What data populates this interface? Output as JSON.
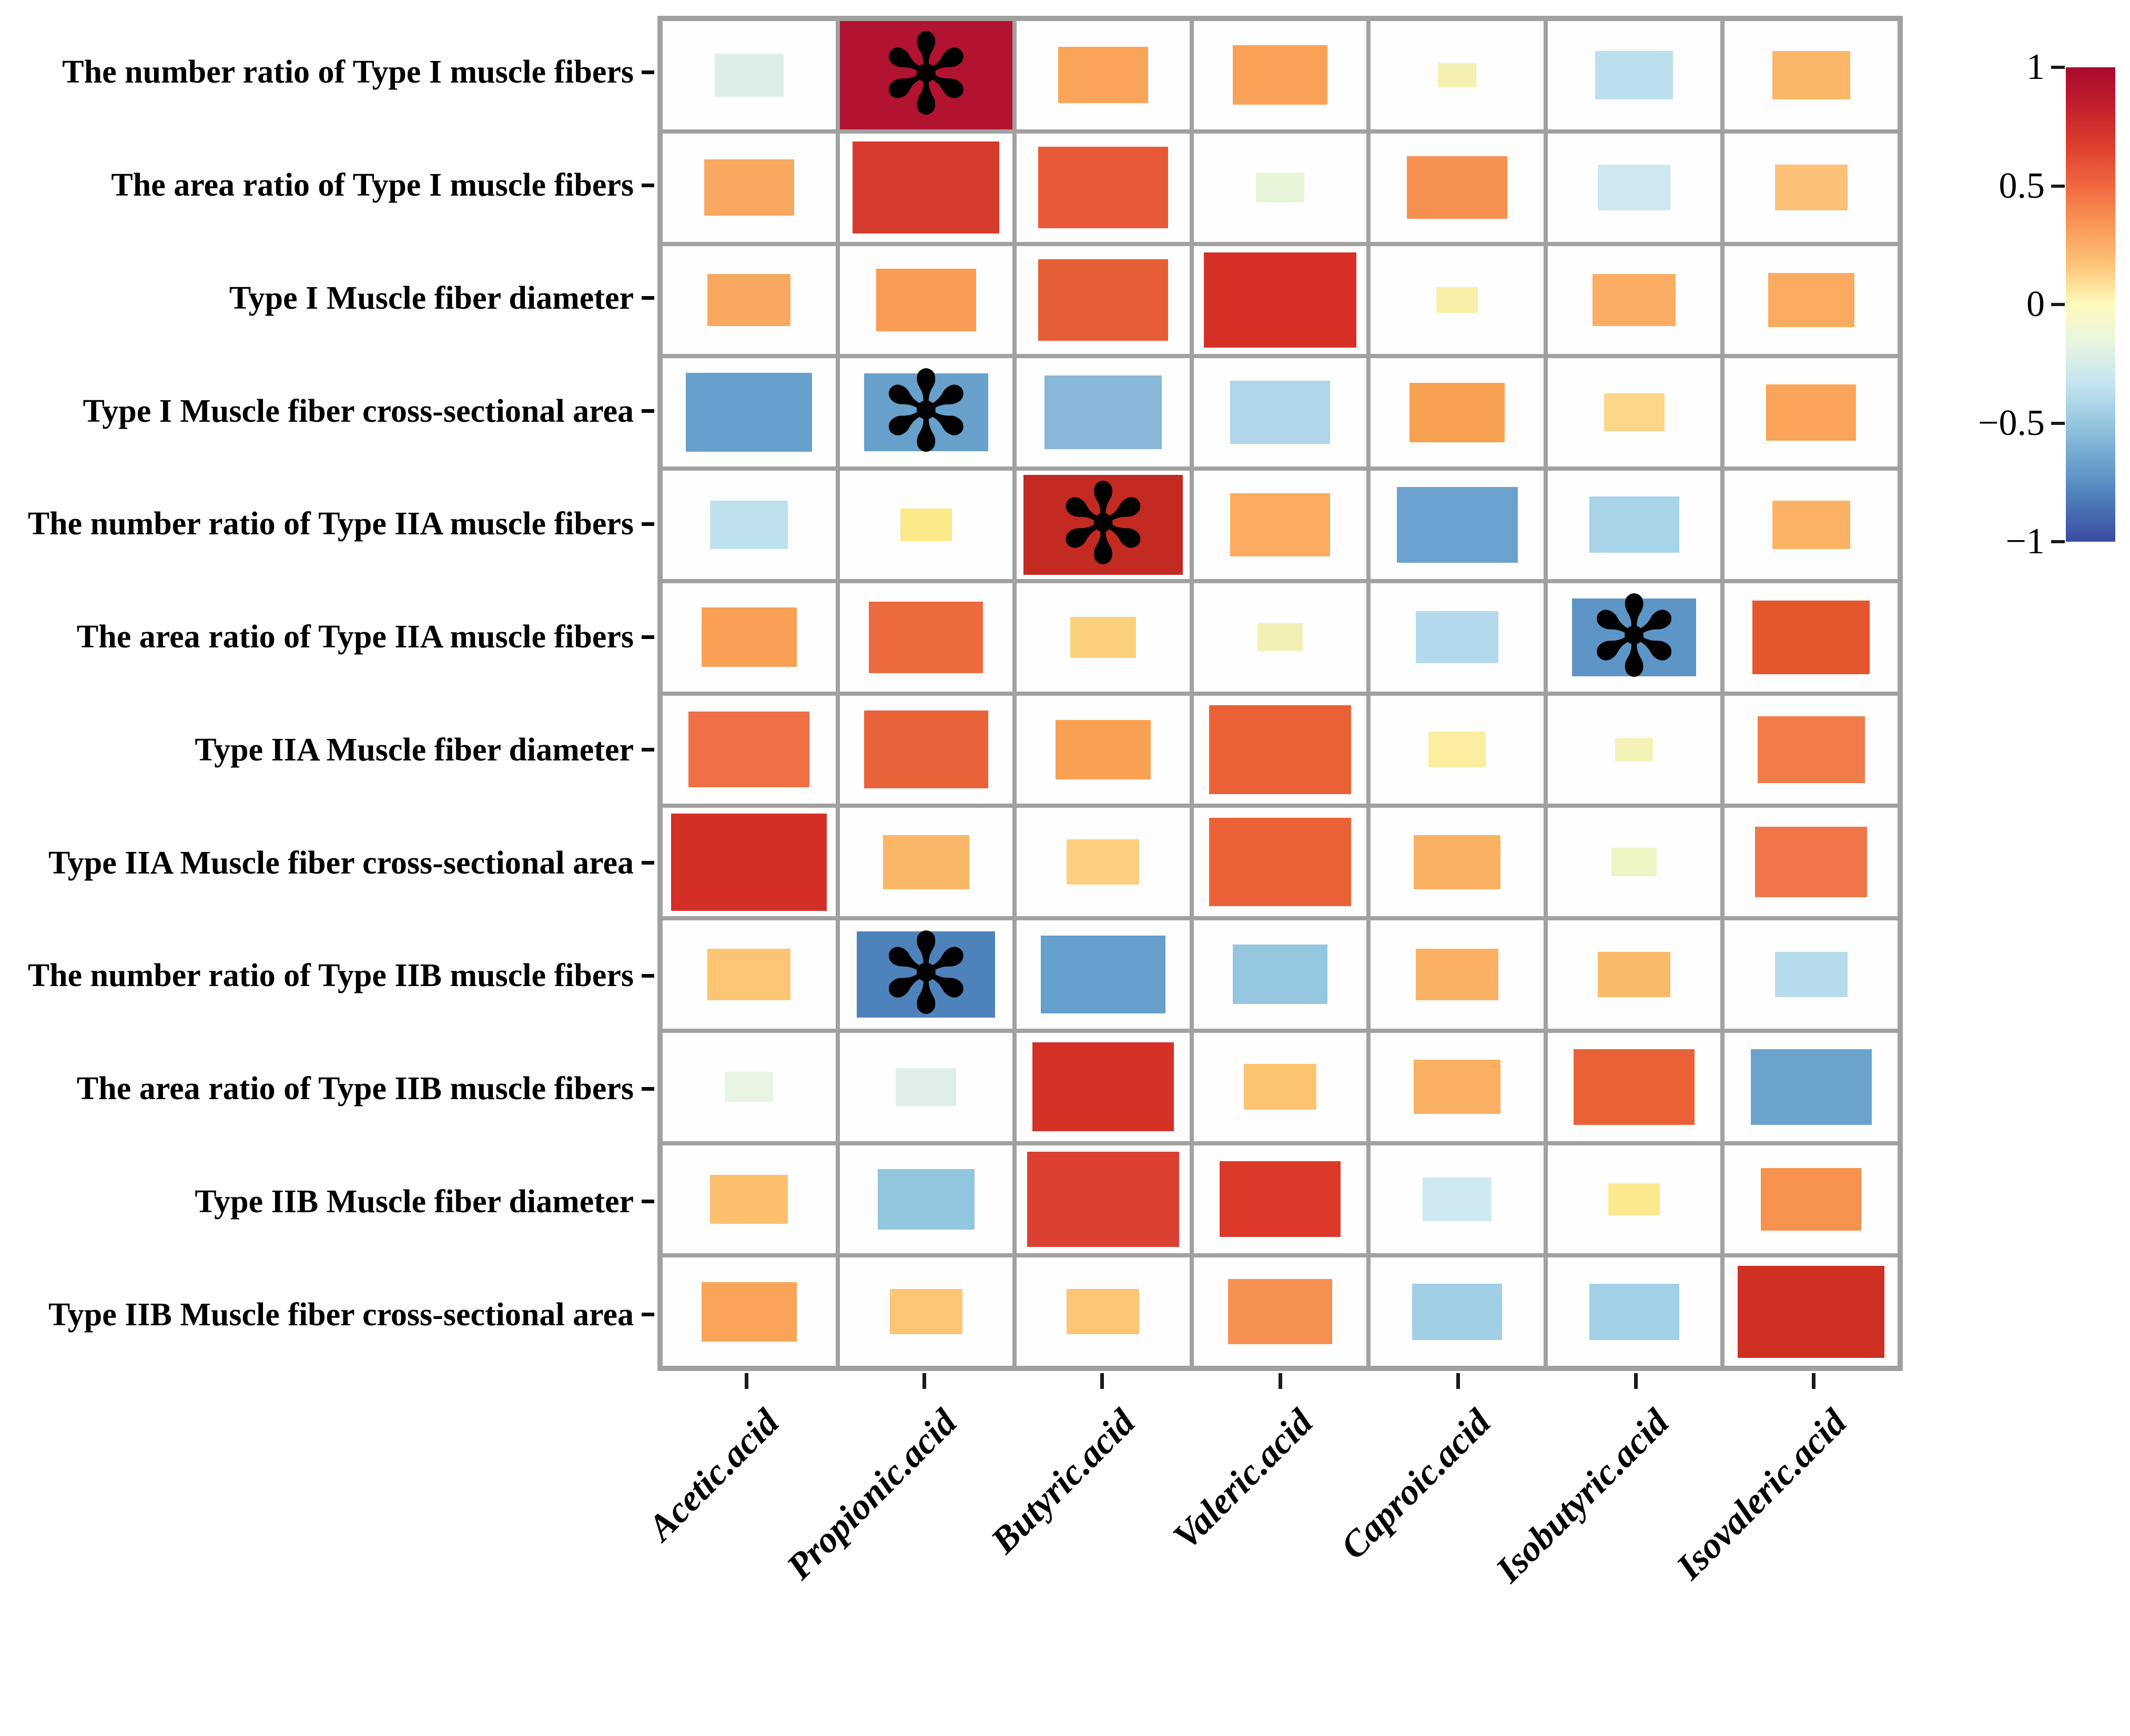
{
  "chart_data": {
    "type": "heatmap",
    "title": "",
    "description": "Correlation matrix between muscle fiber traits and short-chain fatty acids; colored rectangle size and color encode correlation coefficient r, asterisk marks significant correlations",
    "x_categories": [
      "Acetic.acid",
      "Propionic.acid",
      "Butyric.acid",
      "Valeric.acid",
      "Caproic.acid",
      "Isobutyric.acid",
      "Isovaleric.acid"
    ],
    "y_categories": [
      "The number ratio of Type I muscle fibers",
      "The area ratio of Type I muscle fibers",
      "Type I Muscle fiber diameter",
      "Type I Muscle fiber cross-sectional area",
      "The number ratio of Type IIA muscle fibers",
      "The area ratio of Type IIA muscle fibers",
      "Type IIA Muscle fiber diameter",
      "Type IIA Muscle fiber cross-sectional area",
      "The number ratio of Type IIB muscle fibers",
      "The area ratio of Type IIB muscle fibers",
      "Type IIB Muscle fiber diameter",
      "Type IIB Muscle fiber cross-sectional area"
    ],
    "legend_position": "right",
    "grid_on": true,
    "grid_line_color": "#a1a1a1",
    "cell_background": "#fefefe",
    "sig_marker": "✻",
    "colorbar": {
      "min": -1,
      "max": 1,
      "tick_labels": [
        "1",
        "0.5",
        "0",
        "−0.5",
        "−1"
      ],
      "tick_values": [
        1,
        0.5,
        0,
        -0.5,
        -1
      ],
      "gradient_top_to_bottom": [
        "#a70b2d",
        "#c31f2d",
        "#de3f2d",
        "#f0683f",
        "#fa9857",
        "#fdc478",
        "#fefbbd",
        "#e7f4e1",
        "#c4e4ef",
        "#96c7e0",
        "#6ba3cd",
        "#4b79b7",
        "#3b4ba1"
      ]
    },
    "cells": [
      [
        {
          "v": -0.1,
          "c": "#dceee9",
          "s": 0.4
        },
        {
          "v": 0.95,
          "c": "#b11331",
          "s": 1.0,
          "sig": true
        },
        {
          "v": 0.45,
          "c": "#f9a457",
          "s": 0.52
        },
        {
          "v": 0.45,
          "c": "#f9a257",
          "s": 0.55
        },
        {
          "v": 0.1,
          "c": "#f4f0b4",
          "s": 0.22
        },
        {
          "v": -0.25,
          "c": "#bcdfee",
          "s": 0.45
        },
        {
          "v": 0.4,
          "c": "#fbb667",
          "s": 0.45
        }
      ],
      [
        {
          "v": 0.45,
          "c": "#f9a85f",
          "s": 0.52
        },
        {
          "v": 0.75,
          "c": "#d73b2d",
          "s": 0.85
        },
        {
          "v": 0.6,
          "c": "#e8593a",
          "s": 0.75
        },
        {
          "v": -0.05,
          "c": "#e9f5d8",
          "s": 0.28
        },
        {
          "v": 0.5,
          "c": "#f69050",
          "s": 0.58
        },
        {
          "v": -0.15,
          "c": "#cfe7f0",
          "s": 0.42
        },
        {
          "v": 0.35,
          "c": "#fcc177",
          "s": 0.42
        }
      ],
      [
        {
          "v": 0.45,
          "c": "#f9a85f",
          "s": 0.48
        },
        {
          "v": 0.5,
          "c": "#f89b54",
          "s": 0.58
        },
        {
          "v": 0.6,
          "c": "#e55c35",
          "s": 0.75
        },
        {
          "v": 0.75,
          "c": "#d63026",
          "s": 0.88
        },
        {
          "v": 0.1,
          "c": "#f8f0a9",
          "s": 0.24
        },
        {
          "v": 0.4,
          "c": "#fbae63",
          "s": 0.48
        },
        {
          "v": 0.45,
          "c": "#fbab60",
          "s": 0.5
        }
      ],
      [
        {
          "v": -0.55,
          "c": "#66a0cb",
          "s": 0.73
        },
        {
          "v": -0.55,
          "c": "#66a0cb",
          "s": 0.72,
          "sig": true
        },
        {
          "v": -0.45,
          "c": "#88b7d9",
          "s": 0.68
        },
        {
          "v": -0.3,
          "c": "#aed5ea",
          "s": 0.58
        },
        {
          "v": 0.45,
          "c": "#f9a153",
          "s": 0.55
        },
        {
          "v": 0.25,
          "c": "#fcd68a",
          "s": 0.35
        },
        {
          "v": 0.45,
          "c": "#f9a458",
          "s": 0.52
        }
      ],
      [
        {
          "v": -0.2,
          "c": "#bfe1ee",
          "s": 0.45
        },
        {
          "v": 0.15,
          "c": "#fce988",
          "s": 0.3
        },
        {
          "v": 0.85,
          "c": "#c32a22",
          "s": 0.92,
          "sig": true
        },
        {
          "v": 0.4,
          "c": "#fbab60",
          "s": 0.58
        },
        {
          "v": -0.55,
          "c": "#6aa2cd",
          "s": 0.7
        },
        {
          "v": -0.3,
          "c": "#a7d4e8",
          "s": 0.52
        },
        {
          "v": 0.35,
          "c": "#fbb265",
          "s": 0.45
        }
      ],
      [
        {
          "v": 0.45,
          "c": "#f9a055",
          "s": 0.55
        },
        {
          "v": 0.6,
          "c": "#ec6a3e",
          "s": 0.66
        },
        {
          "v": 0.25,
          "c": "#fdd07b",
          "s": 0.38
        },
        {
          "v": 0.08,
          "c": "#f3f0b7",
          "s": 0.26
        },
        {
          "v": -0.25,
          "c": "#b3daec",
          "s": 0.48
        },
        {
          "v": -0.65,
          "c": "#5d96c6",
          "s": 0.72,
          "sig": true
        },
        {
          "v": 0.65,
          "c": "#e4572e",
          "s": 0.68
        }
      ],
      [
        {
          "v": 0.55,
          "c": "#f07046",
          "s": 0.7
        },
        {
          "v": 0.6,
          "c": "#ea6239",
          "s": 0.72
        },
        {
          "v": 0.45,
          "c": "#f9a153",
          "s": 0.55
        },
        {
          "v": 0.6,
          "c": "#ea6137",
          "s": 0.82
        },
        {
          "v": 0.15,
          "c": "#fceea0",
          "s": 0.33
        },
        {
          "v": 0.08,
          "c": "#f5f2b8",
          "s": 0.22
        },
        {
          "v": 0.55,
          "c": "#f07c49",
          "s": 0.62
        }
      ],
      [
        {
          "v": 0.8,
          "c": "#d42f26",
          "s": 0.9
        },
        {
          "v": 0.35,
          "c": "#fbb768",
          "s": 0.5
        },
        {
          "v": 0.3,
          "c": "#fcce80",
          "s": 0.42
        },
        {
          "v": 0.6,
          "c": "#ea6137",
          "s": 0.82
        },
        {
          "v": 0.4,
          "c": "#fbb164",
          "s": 0.5
        },
        {
          "v": -0.05,
          "c": "#eef4c3",
          "s": 0.26
        },
        {
          "v": 0.55,
          "c": "#f0764a",
          "s": 0.65
        }
      ],
      [
        {
          "v": 0.3,
          "c": "#fcc573",
          "s": 0.48
        },
        {
          "v": -0.65,
          "c": "#4e82bb",
          "s": 0.8,
          "sig": true
        },
        {
          "v": -0.55,
          "c": "#659fca",
          "s": 0.72
        },
        {
          "v": -0.35,
          "c": "#94c6df",
          "s": 0.55
        },
        {
          "v": 0.35,
          "c": "#fbb164",
          "s": 0.48
        },
        {
          "v": 0.3,
          "c": "#fbb96a",
          "s": 0.42
        },
        {
          "v": -0.25,
          "c": "#b6dcec",
          "s": 0.42
        }
      ],
      [
        {
          "v": -0.05,
          "c": "#e8f5e2",
          "s": 0.28
        },
        {
          "v": -0.08,
          "c": "#ddefe8",
          "s": 0.35
        },
        {
          "v": 0.75,
          "c": "#d43227",
          "s": 0.82
        },
        {
          "v": 0.3,
          "c": "#fcc471",
          "s": 0.42
        },
        {
          "v": 0.35,
          "c": "#fbb063",
          "s": 0.5
        },
        {
          "v": 0.6,
          "c": "#ea6137",
          "s": 0.7
        },
        {
          "v": -0.55,
          "c": "#6ba3cd",
          "s": 0.7
        }
      ],
      [
        {
          "v": 0.35,
          "c": "#fcc06c",
          "s": 0.45
        },
        {
          "v": -0.4,
          "c": "#92c5de",
          "s": 0.56
        },
        {
          "v": 0.75,
          "c": "#dc4030",
          "s": 0.88
        },
        {
          "v": 0.7,
          "c": "#dc392b",
          "s": 0.7
        },
        {
          "v": -0.15,
          "c": "#cfe9f1",
          "s": 0.4
        },
        {
          "v": 0.15,
          "c": "#fce88d",
          "s": 0.3
        },
        {
          "v": 0.5,
          "c": "#f6924d",
          "s": 0.58
        }
      ],
      [
        {
          "v": 0.45,
          "c": "#f9a458",
          "s": 0.55
        },
        {
          "v": 0.3,
          "c": "#fcc674",
          "s": 0.42
        },
        {
          "v": 0.3,
          "c": "#fcc573",
          "s": 0.42
        },
        {
          "v": 0.5,
          "c": "#f69050",
          "s": 0.6
        },
        {
          "v": -0.3,
          "c": "#a1cfe5",
          "s": 0.52
        },
        {
          "v": -0.3,
          "c": "#a2d0e6",
          "s": 0.52
        },
        {
          "v": 0.8,
          "c": "#d02f23",
          "s": 0.85
        }
      ]
    ]
  }
}
